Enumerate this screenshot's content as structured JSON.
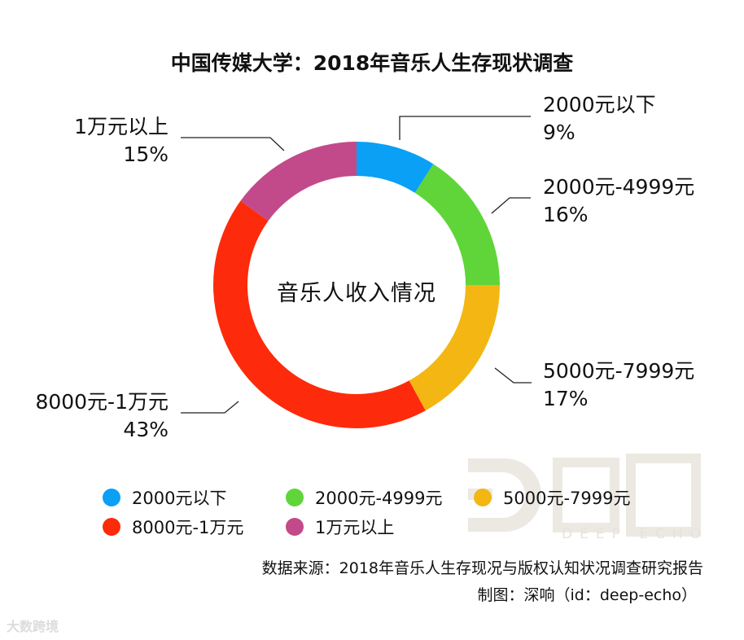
{
  "title": "中国传媒大学：2018年音乐人生存现状调查",
  "center_label": "音乐人收入情况",
  "callouts": [
    {
      "label": "2000元以下",
      "pct": "9%"
    },
    {
      "label": "2000元-4999元",
      "pct": "16%"
    },
    {
      "label": "5000元-7999元",
      "pct": "17%"
    },
    {
      "label": "8000元-1万元",
      "pct": "43%"
    },
    {
      "label": "1万元以上",
      "pct": "15%"
    }
  ],
  "legend": [
    {
      "label": "2000元以下",
      "color": "#0aa0f5"
    },
    {
      "label": "2000元-4999元",
      "color": "#5fd53a"
    },
    {
      "label": "5000元-7999元",
      "color": "#f3b613"
    },
    {
      "label": "8000元-1万元",
      "color": "#fd2b0b"
    },
    {
      "label": "1万元以上",
      "color": "#c24a8a"
    }
  ],
  "watermark": {
    "text": "DEEP ECHO"
  },
  "source": "数据来源：2018年音乐人生存现况与版权认知状况调查研究报告",
  "credit": "制图：深响（id：deep-echo）",
  "corner_mark": "大数跨境",
  "chart_data": {
    "type": "pie",
    "subtype": "donut",
    "title": "中国传媒大学：2018年音乐人生存现状调查",
    "center_text": "音乐人收入情况",
    "categories": [
      "2000元以下",
      "2000元-4999元",
      "5000元-7999元",
      "8000元-1万元",
      "1万元以上"
    ],
    "values": [
      9,
      16,
      17,
      43,
      15
    ],
    "unit": "%",
    "colors": [
      "#0aa0f5",
      "#5fd53a",
      "#f3b613",
      "#fd2b0b",
      "#c24a8a"
    ],
    "start_angle": "12 o'clock, clockwise",
    "legend_position": "bottom",
    "source": "数据来源：2018年音乐人生存现况与版权认知状况调查研究报告"
  }
}
